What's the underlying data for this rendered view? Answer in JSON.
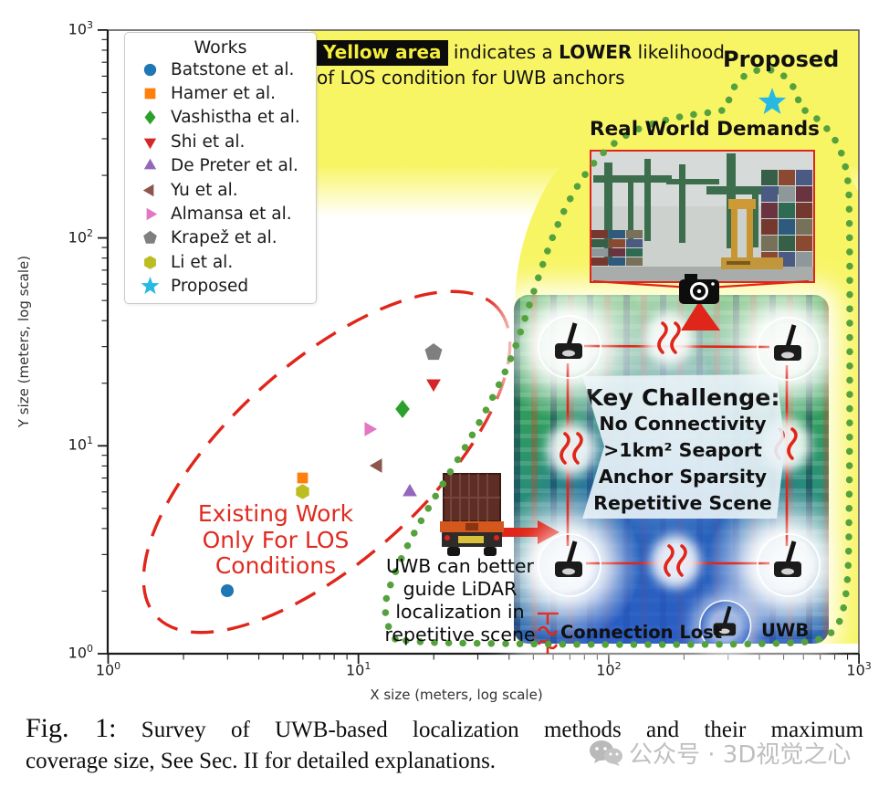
{
  "legend": {
    "title": "Works"
  },
  "chart_data": {
    "type": "scatter",
    "x_scale": "log",
    "y_scale": "log",
    "xlabel": "X size (meters, log scale)",
    "ylabel": "Y size (meters, log scale)",
    "xlim": [
      1,
      1000
    ],
    "ylim": [
      1,
      1000
    ],
    "tick_base": "10",
    "x_tick_exponents": [
      0,
      1,
      2,
      3
    ],
    "y_tick_exponents": [
      0,
      1,
      2,
      3
    ],
    "grid": false,
    "legend_position": "upper left",
    "series": [
      {
        "name": "Batstone et al.",
        "marker": "circle",
        "color": "#1f77b4",
        "x": 3,
        "y": 2
      },
      {
        "name": "Hamer et al.",
        "marker": "square",
        "color": "#ff7f0e",
        "x": 6,
        "y": 7
      },
      {
        "name": "Vashistha et al.",
        "marker": "diamond",
        "color": "#2ca02c",
        "x": 15,
        "y": 15
      },
      {
        "name": "Shi et al.",
        "marker": "triangle-down",
        "color": "#d62728",
        "x": 20,
        "y": 20
      },
      {
        "name": "De Preter et al.",
        "marker": "triangle-up",
        "color": "#9467bd",
        "x": 16,
        "y": 6
      },
      {
        "name": "Yu et al.",
        "marker": "triangle-left",
        "color": "#8c564b",
        "x": 12,
        "y": 8
      },
      {
        "name": "Almansa et al.",
        "marker": "triangle-right",
        "color": "#e377c2",
        "x": 11,
        "y": 12
      },
      {
        "name": "Krapež et al.",
        "marker": "pentagon",
        "color": "#7f7f7f",
        "x": 20,
        "y": 28
      },
      {
        "name": "Li et al.",
        "marker": "hexagon",
        "color": "#bcbd22",
        "x": 6,
        "y": 6
      },
      {
        "name": "Proposed",
        "marker": "star",
        "color": "#27b9e2",
        "x": 450,
        "y": 450
      }
    ]
  },
  "annotations": {
    "yellow_note": {
      "chip": "Yellow area",
      "mid": " indicates a ",
      "bold": "LOWER",
      "tail": " likelihood",
      "line2": "of LOS condition for UWB anchors"
    },
    "proposed": "Proposed",
    "real_world": "Real World Demands",
    "key_challenge": {
      "title": "Key Challenge:",
      "lines": [
        "No Connectivity",
        ">1km² Seaport",
        "Anchor Sparsity",
        "Repetitive Scene"
      ]
    },
    "existing_work": [
      "Existing Work",
      "Only For LOS",
      "Conditions"
    ],
    "uwb_note": [
      "UWB can better",
      "guide LiDAR",
      "localization in",
      "repetitive scene"
    ],
    "connection_lost": "Connection Lost",
    "uwb_label": "UWB"
  },
  "caption": {
    "label": "Fig. 1:",
    "line1": "Survey of UWB-based localization methods and their maximum",
    "line2": "coverage size, See Sec. II for detailed explanations."
  },
  "watermark": {
    "text": "公众号 · 3D视觉之心"
  },
  "colors": {
    "yellow_area": "#f8f565",
    "dotted_green": "#55a23d",
    "annotation_red": "#e0261a",
    "chip_text": "#f4ee3c"
  }
}
